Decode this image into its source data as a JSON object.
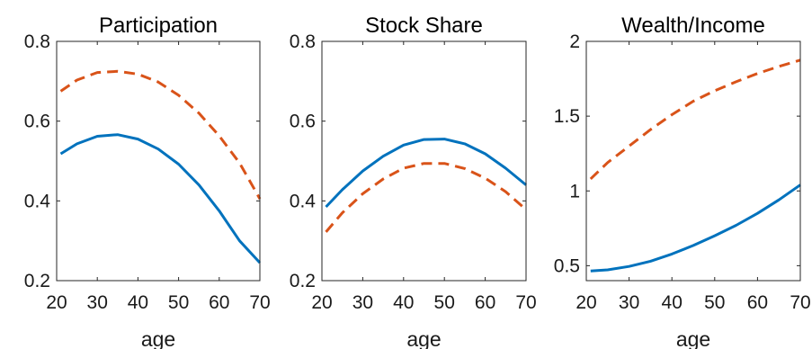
{
  "chart_data": [
    {
      "type": "line",
      "title": "Participation",
      "xlabel": "age",
      "ylabel": "",
      "xlim": [
        20,
        70
      ],
      "ylim": [
        0.2,
        0.8
      ],
      "xticks": [
        "20",
        "30",
        "40",
        "50",
        "60",
        "70"
      ],
      "yticks": [
        "0.2",
        "0.4",
        "0.6",
        "0.8"
      ],
      "x": [
        21,
        25,
        30,
        35,
        40,
        45,
        50,
        55,
        60,
        65,
        70
      ],
      "series": [
        {
          "values": [
            0.518,
            0.543,
            0.562,
            0.566,
            0.555,
            0.53,
            0.492,
            0.44,
            0.375,
            0.3,
            0.245
          ],
          "color": "#0072BD",
          "dash": "solid"
        },
        {
          "values": [
            0.675,
            0.703,
            0.722,
            0.725,
            0.718,
            0.698,
            0.665,
            0.62,
            0.563,
            0.495,
            0.405
          ],
          "color": "#D95319",
          "dash": "dashed"
        }
      ]
    },
    {
      "type": "line",
      "title": "Stock Share",
      "xlabel": "age",
      "ylabel": "",
      "xlim": [
        20,
        70
      ],
      "ylim": [
        0.2,
        0.8
      ],
      "xticks": [
        "20",
        "30",
        "40",
        "50",
        "60",
        "70"
      ],
      "yticks": [
        "0.2",
        "0.4",
        "0.6",
        "0.8"
      ],
      "x": [
        21,
        25,
        30,
        35,
        40,
        45,
        50,
        55,
        60,
        65,
        70
      ],
      "series": [
        {
          "values": [
            0.385,
            0.428,
            0.475,
            0.512,
            0.54,
            0.554,
            0.555,
            0.543,
            0.518,
            0.482,
            0.44
          ],
          "color": "#0072BD",
          "dash": "solid"
        },
        {
          "values": [
            0.322,
            0.37,
            0.418,
            0.455,
            0.482,
            0.494,
            0.494,
            0.481,
            0.457,
            0.423,
            0.378
          ],
          "color": "#D95319",
          "dash": "dashed"
        }
      ]
    },
    {
      "type": "line",
      "title": "Wealth/Income",
      "xlabel": "age",
      "ylabel": "",
      "xlim": [
        20,
        70
      ],
      "ylim": [
        0.4,
        2
      ],
      "xticks": [
        "20",
        "30",
        "40",
        "50",
        "60",
        "70"
      ],
      "yticks": [
        "0.5",
        "1",
        "1.5",
        "2"
      ],
      "x": [
        21,
        25,
        30,
        35,
        40,
        45,
        50,
        55,
        60,
        65,
        70
      ],
      "series": [
        {
          "values": [
            0.465,
            0.472,
            0.495,
            0.53,
            0.578,
            0.635,
            0.7,
            0.77,
            0.85,
            0.94,
            1.04
          ],
          "color": "#0072BD",
          "dash": "solid"
        },
        {
          "values": [
            1.08,
            1.19,
            1.3,
            1.41,
            1.51,
            1.6,
            1.67,
            1.73,
            1.785,
            1.832,
            1.875
          ],
          "color": "#D95319",
          "dash": "dashed"
        }
      ]
    }
  ]
}
